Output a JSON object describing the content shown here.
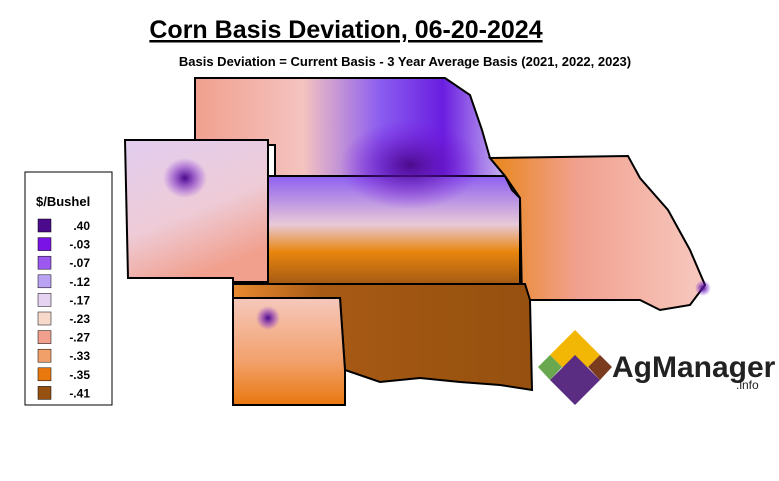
{
  "header": {
    "title": "Corn Basis Deviation, 06-20-2024",
    "subtitle": "Basis Deviation = Current Basis - 3 Year Average Basis (2021, 2022, 2023)"
  },
  "legend": {
    "title": "$/Bushel",
    "items": [
      {
        "label": ".40",
        "color": "#4b0b8c"
      },
      {
        "label": "-.03",
        "color": "#7a14e6"
      },
      {
        "label": "-.07",
        "color": "#9b59ef"
      },
      {
        "label": "-.12",
        "color": "#b9a3f2"
      },
      {
        "label": "-.17",
        "color": "#e6d3f2"
      },
      {
        "label": "-.23",
        "color": "#f7d9cc"
      },
      {
        "label": "-.27",
        "color": "#f1a08e"
      },
      {
        "label": "-.33",
        "color": "#f2a06a"
      },
      {
        "label": "-.35",
        "color": "#e9780f"
      },
      {
        "label": "-.41",
        "color": "#96500f"
      }
    ]
  },
  "logo": {
    "name": "AgManager",
    "suffix": ".info"
  }
}
